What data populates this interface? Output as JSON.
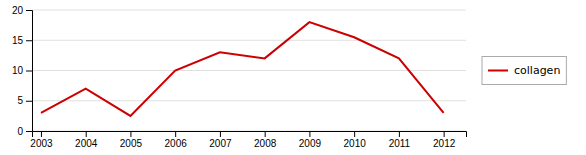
{
  "chart_data": {
    "type": "line",
    "x": [
      2003,
      2004,
      2005,
      2006,
      2007,
      2008,
      2009,
      2010,
      2011,
      2012
    ],
    "series": [
      {
        "name": "collagen",
        "color": "#cc0000",
        "values": [
          3,
          7,
          2.5,
          10,
          13,
          12,
          18,
          15.5,
          12,
          3
        ]
      }
    ],
    "xlim": [
      2002.8,
      2012.5
    ],
    "xticks": [
      2003,
      2004,
      2005,
      2006,
      2007,
      2008,
      2009,
      2010,
      2011,
      2012
    ],
    "ylim": [
      0,
      20
    ],
    "yticks": [
      0,
      5,
      10,
      15,
      20
    ],
    "grid": true,
    "legend": "right"
  }
}
